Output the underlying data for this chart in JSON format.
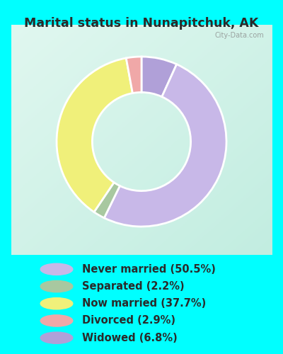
{
  "title": "Marital status in Nunapitchuk, AK",
  "categories": [
    "Never married (50.5%)",
    "Separated (2.2%)",
    "Now married (37.7%)",
    "Divorced (2.9%)",
    "Widowed (6.8%)"
  ],
  "values": [
    50.5,
    2.2,
    37.7,
    2.9,
    6.8
  ],
  "colors": [
    "#c8b8e8",
    "#a8c8a0",
    "#f0f07a",
    "#f0a8a8",
    "#b0a0d8"
  ],
  "legend_colors": [
    "#c8b8e8",
    "#a8c8a0",
    "#f0f07a",
    "#f0a8a8",
    "#b0a0d8"
  ],
  "outer_bg": "#00ffff",
  "title_color": "#2a2a2a",
  "title_fontsize": 12.5,
  "legend_fontsize": 10.5,
  "watermark": "City-Data.com",
  "wedge_order": [
    4,
    0,
    1,
    2,
    3
  ],
  "chart_bg_topleft": [
    0.88,
    0.97,
    0.94
  ],
  "chart_bg_bottomright": [
    0.76,
    0.93,
    0.88
  ]
}
